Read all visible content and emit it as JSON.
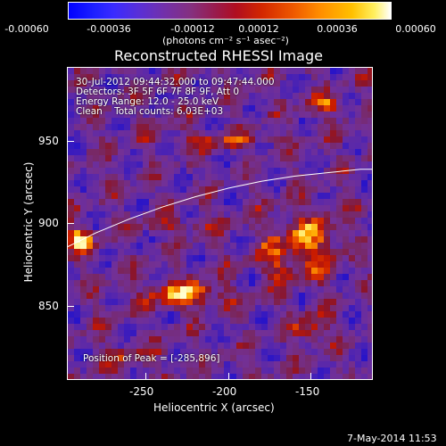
{
  "colorbar": {
    "ticks": [
      "-0.00060",
      "-0.00036",
      "-0.00012",
      "0.00012",
      "0.00036",
      "0.00060"
    ],
    "unit": "(photons cm⁻² s⁻¹ asec⁻²)",
    "colors": [
      "#0000ff",
      "#7330a8",
      "#b00e20",
      "#ef5a00",
      "#ffc000",
      "#ffffff"
    ]
  },
  "title": "Reconstructed RHESSI Image",
  "info": {
    "time": "30-Jul-2012 09:44:32.000 to 09:47:44.000",
    "detectors": "Detectors: 3F 5F 6F 7F 8F 9F, Att 0",
    "energy": "Energy Range: 12.0 - 25.0 keV",
    "clean": "Clean    Total counts: 6.03E+03",
    "peak": "Position of Peak = [-285,896]"
  },
  "axes": {
    "xlabel": "Heliocentric X (arcsec)",
    "ylabel": "Heliocentric Y (arcsec)",
    "xticks": [
      "-250",
      "-200",
      "-150"
    ],
    "yticks": [
      "950",
      "900",
      "850"
    ],
    "xlim": [
      -297,
      -112
    ],
    "ylim": [
      815,
      997
    ]
  },
  "limb_curve": {
    "x": [
      -297,
      -280,
      -260,
      -240,
      -220,
      -200,
      -180,
      -160,
      -140,
      -120,
      -112
    ],
    "y": [
      893,
      901,
      909,
      916,
      922,
      927,
      931,
      934,
      936,
      938,
      938
    ]
  },
  "date_stamp": "7-May-2014 11:53"
}
